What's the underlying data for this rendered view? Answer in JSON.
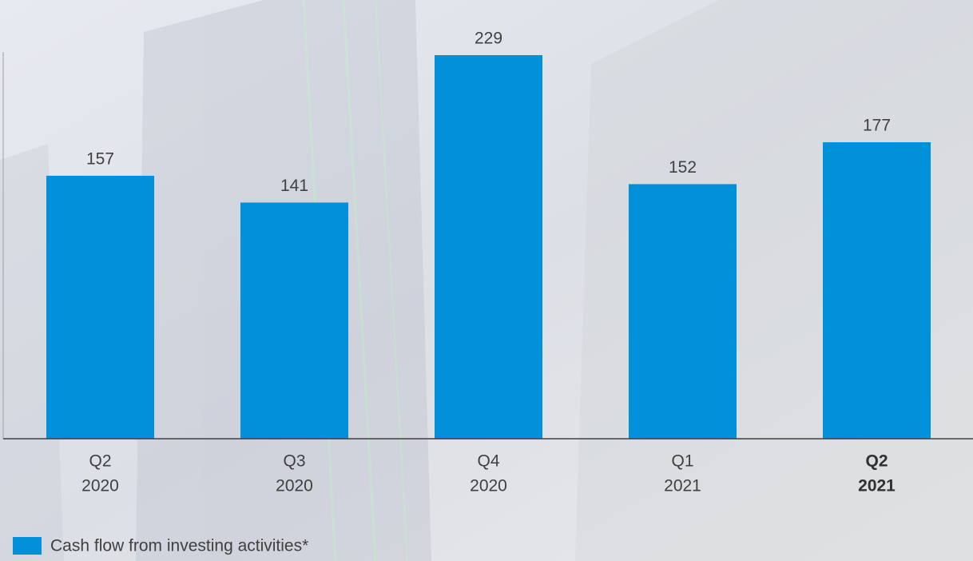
{
  "chart_data": {
    "type": "bar",
    "categories": [
      [
        "Q2",
        "2020"
      ],
      [
        "Q3",
        "2020"
      ],
      [
        "Q4",
        "2020"
      ],
      [
        "Q1",
        "2021"
      ],
      [
        "Q2",
        "2021"
      ]
    ],
    "series": [
      {
        "name": "Cash flow from investing activities*",
        "color": "#0091da",
        "values": [
          157,
          141,
          229,
          152,
          177
        ]
      }
    ],
    "legend": "bottom-left"
  }
}
